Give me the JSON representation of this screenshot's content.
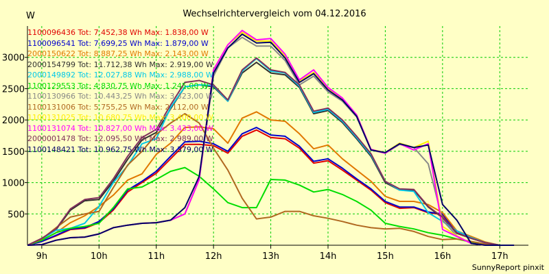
{
  "chart_data": {
    "type": "line",
    "title": "Wechselrichtervergleich vom 04.12.2016",
    "ylabel": "W",
    "xlabel": "",
    "credit": "SunnyReport pinxit",
    "ylim": [
      0,
      3500
    ],
    "xlim": [
      8.75,
      17.5
    ],
    "grid": true,
    "legend_position": "top-left",
    "x_tick_labels": [
      "9h",
      "10h",
      "11h",
      "12h",
      "13h",
      "14h",
      "15h",
      "16h",
      "17h"
    ],
    "y_tick_labels": [
      "500",
      "1000",
      "1500",
      "2000",
      "2500",
      "3000"
    ],
    "x": [
      8.75,
      9.0,
      9.25,
      9.5,
      9.75,
      10.0,
      10.25,
      10.5,
      10.75,
      11.0,
      11.25,
      11.5,
      11.75,
      12.0,
      12.25,
      12.5,
      12.75,
      13.0,
      13.25,
      13.5,
      13.75,
      14.0,
      14.25,
      14.5,
      14.75,
      15.0,
      15.25,
      15.5,
      15.75,
      16.0,
      16.25,
      16.5,
      16.75,
      17.0,
      17.25
    ],
    "series": [
      {
        "name": "1100096436",
        "legend": "1100096436 Tot: 7.452,38 Wh Max: 1.838,00 W",
        "color": "#e00000",
        "values": [
          0,
          60,
          150,
          250,
          270,
          360,
          560,
          850,
          1000,
          1150,
          1380,
          1610,
          1610,
          1590,
          1470,
          1740,
          1840,
          1720,
          1700,
          1550,
          1310,
          1350,
          1200,
          1040,
          880,
          680,
          590,
          600,
          520,
          490,
          190,
          110,
          40,
          0,
          0
        ]
      },
      {
        "name": "1100096541",
        "legend": "1100096541 Tot: 7.699,25 Wh Max: 1.879,00 W",
        "color": "#0000cc",
        "values": [
          0,
          60,
          160,
          260,
          280,
          380,
          580,
          880,
          1020,
          1180,
          1420,
          1650,
          1660,
          1620,
          1500,
          1780,
          1880,
          1760,
          1740,
          1580,
          1340,
          1380,
          1230,
          1060,
          900,
          700,
          610,
          610,
          530,
          500,
          200,
          120,
          40,
          0,
          0
        ]
      },
      {
        "name": "2000150622",
        "legend": "2000150622 Tot: 8.887,25 Wh Max: 2.143,00 W",
        "color": "#e07800",
        "values": [
          0,
          80,
          200,
          360,
          470,
          620,
          800,
          1040,
          1140,
          1450,
          1630,
          1880,
          1890,
          1860,
          1630,
          2030,
          2130,
          2000,
          1980,
          1780,
          1540,
          1600,
          1380,
          1200,
          1020,
          780,
          700,
          700,
          650,
          520,
          230,
          140,
          50,
          0,
          0
        ]
      },
      {
        "name": "2000154799",
        "legend": "2000154799 Tot: 11.712,38 Wh Max: 2.919,00 W",
        "color": "#303030",
        "values": [
          0,
          100,
          250,
          560,
          710,
          730,
          1020,
          1370,
          1680,
          1800,
          2180,
          2530,
          2560,
          2530,
          2300,
          2750,
          2920,
          2750,
          2720,
          2520,
          2100,
          2150,
          1960,
          1700,
          1420,
          1000,
          880,
          880,
          610,
          440,
          190,
          110,
          40,
          0,
          0
        ]
      },
      {
        "name": "2000149892",
        "legend": "2000149892 Tot: 12.027,88 Wh Max: 2.988,00 W",
        "color": "#00c8e8",
        "values": [
          0,
          100,
          240,
          270,
          350,
          620,
          1000,
          1270,
          1620,
          1700,
          2200,
          2530,
          2560,
          2550,
          2300,
          2780,
          2980,
          2780,
          2750,
          2540,
          2120,
          2170,
          1980,
          1720,
          1440,
          1020,
          880,
          860,
          520,
          380,
          230,
          120,
          40,
          0,
          0
        ]
      },
      {
        "name": "1100129553",
        "legend": "1100129553 Tot: 4.830,75 Wh Max: 1.245,00 W",
        "color": "#00dd00",
        "values": [
          0,
          80,
          200,
          270,
          300,
          350,
          600,
          900,
          930,
          1050,
          1180,
          1240,
          1100,
          900,
          680,
          600,
          600,
          1050,
          1040,
          960,
          850,
          890,
          810,
          700,
          560,
          350,
          300,
          260,
          200,
          160,
          100,
          50,
          10,
          0,
          0
        ]
      },
      {
        "name": "1100130966",
        "legend": "1100130966 Tot: 10.443,25 Wh Max: 3.323,00 W",
        "color": "#888888",
        "values": [
          0,
          10,
          80,
          120,
          130,
          180,
          280,
          320,
          350,
          360,
          400,
          500,
          1050,
          2700,
          3150,
          3320,
          3180,
          3180,
          2950,
          2560,
          2700,
          2450,
          2300,
          2050,
          1520,
          1470,
          1610,
          1560,
          1300,
          400,
          150,
          30,
          0,
          0,
          0
        ]
      },
      {
        "name": "1100131006",
        "legend": "1100131006 Tot: 5.755,25 Wh Max: 2.112,00 W",
        "color": "#b06820",
        "values": [
          0,
          100,
          280,
          450,
          500,
          540,
          920,
          1280,
          1500,
          1770,
          1950,
          2100,
          1950,
          1550,
          1200,
          750,
          420,
          450,
          540,
          540,
          470,
          430,
          380,
          320,
          280,
          260,
          270,
          220,
          140,
          90,
          100,
          60,
          20,
          0,
          0
        ]
      },
      {
        "name": "1100131025",
        "legend": "1100131025 Tot: 10.680,75 Wh Max: 3.400,00 W",
        "color": "#ffee00",
        "values": [
          0,
          10,
          80,
          120,
          130,
          180,
          280,
          320,
          350,
          360,
          400,
          500,
          1050,
          2800,
          3200,
          3400,
          3260,
          3260,
          3020,
          2620,
          2760,
          2500,
          2340,
          2080,
          1530,
          1480,
          1630,
          1560,
          1660,
          300,
          150,
          30,
          0,
          0,
          0
        ]
      },
      {
        "name": "1100131074",
        "legend": "1100131074 Tot: 10.827,00 Wh Max: 3.433,00 W",
        "color": "#ff00ff",
        "values": [
          0,
          10,
          80,
          120,
          130,
          180,
          280,
          320,
          350,
          360,
          400,
          500,
          1050,
          2800,
          3200,
          3430,
          3280,
          3300,
          3050,
          2640,
          2800,
          2520,
          2350,
          2080,
          1530,
          1470,
          1620,
          1520,
          1620,
          250,
          140,
          30,
          0,
          0,
          0
        ]
      },
      {
        "name": "2000001478",
        "legend": "2000001478 Tot: 12.095,50 Wh Max: 2.989,00 W",
        "color": "#80305c",
        "values": [
          0,
          110,
          260,
          580,
          730,
          760,
          1060,
          1420,
          1720,
          1850,
          2240,
          2600,
          2630,
          2560,
          2320,
          2800,
          2990,
          2800,
          2760,
          2560,
          2140,
          2190,
          2000,
          1740,
          1460,
          1020,
          900,
          890,
          620,
          450,
          200,
          110,
          40,
          0,
          0
        ]
      },
      {
        "name": "1100148421",
        "legend": "1100148421 Tot: 10.962,75 Wh Max: 3.379,00 W",
        "color": "#000066",
        "values": [
          0,
          10,
          80,
          120,
          130,
          180,
          280,
          320,
          350,
          360,
          400,
          600,
          1100,
          2750,
          3150,
          3370,
          3230,
          3240,
          2990,
          2600,
          2740,
          2480,
          2320,
          2060,
          1520,
          1480,
          1620,
          1560,
          1600,
          650,
          400,
          30,
          0,
          0,
          0
        ]
      }
    ]
  }
}
